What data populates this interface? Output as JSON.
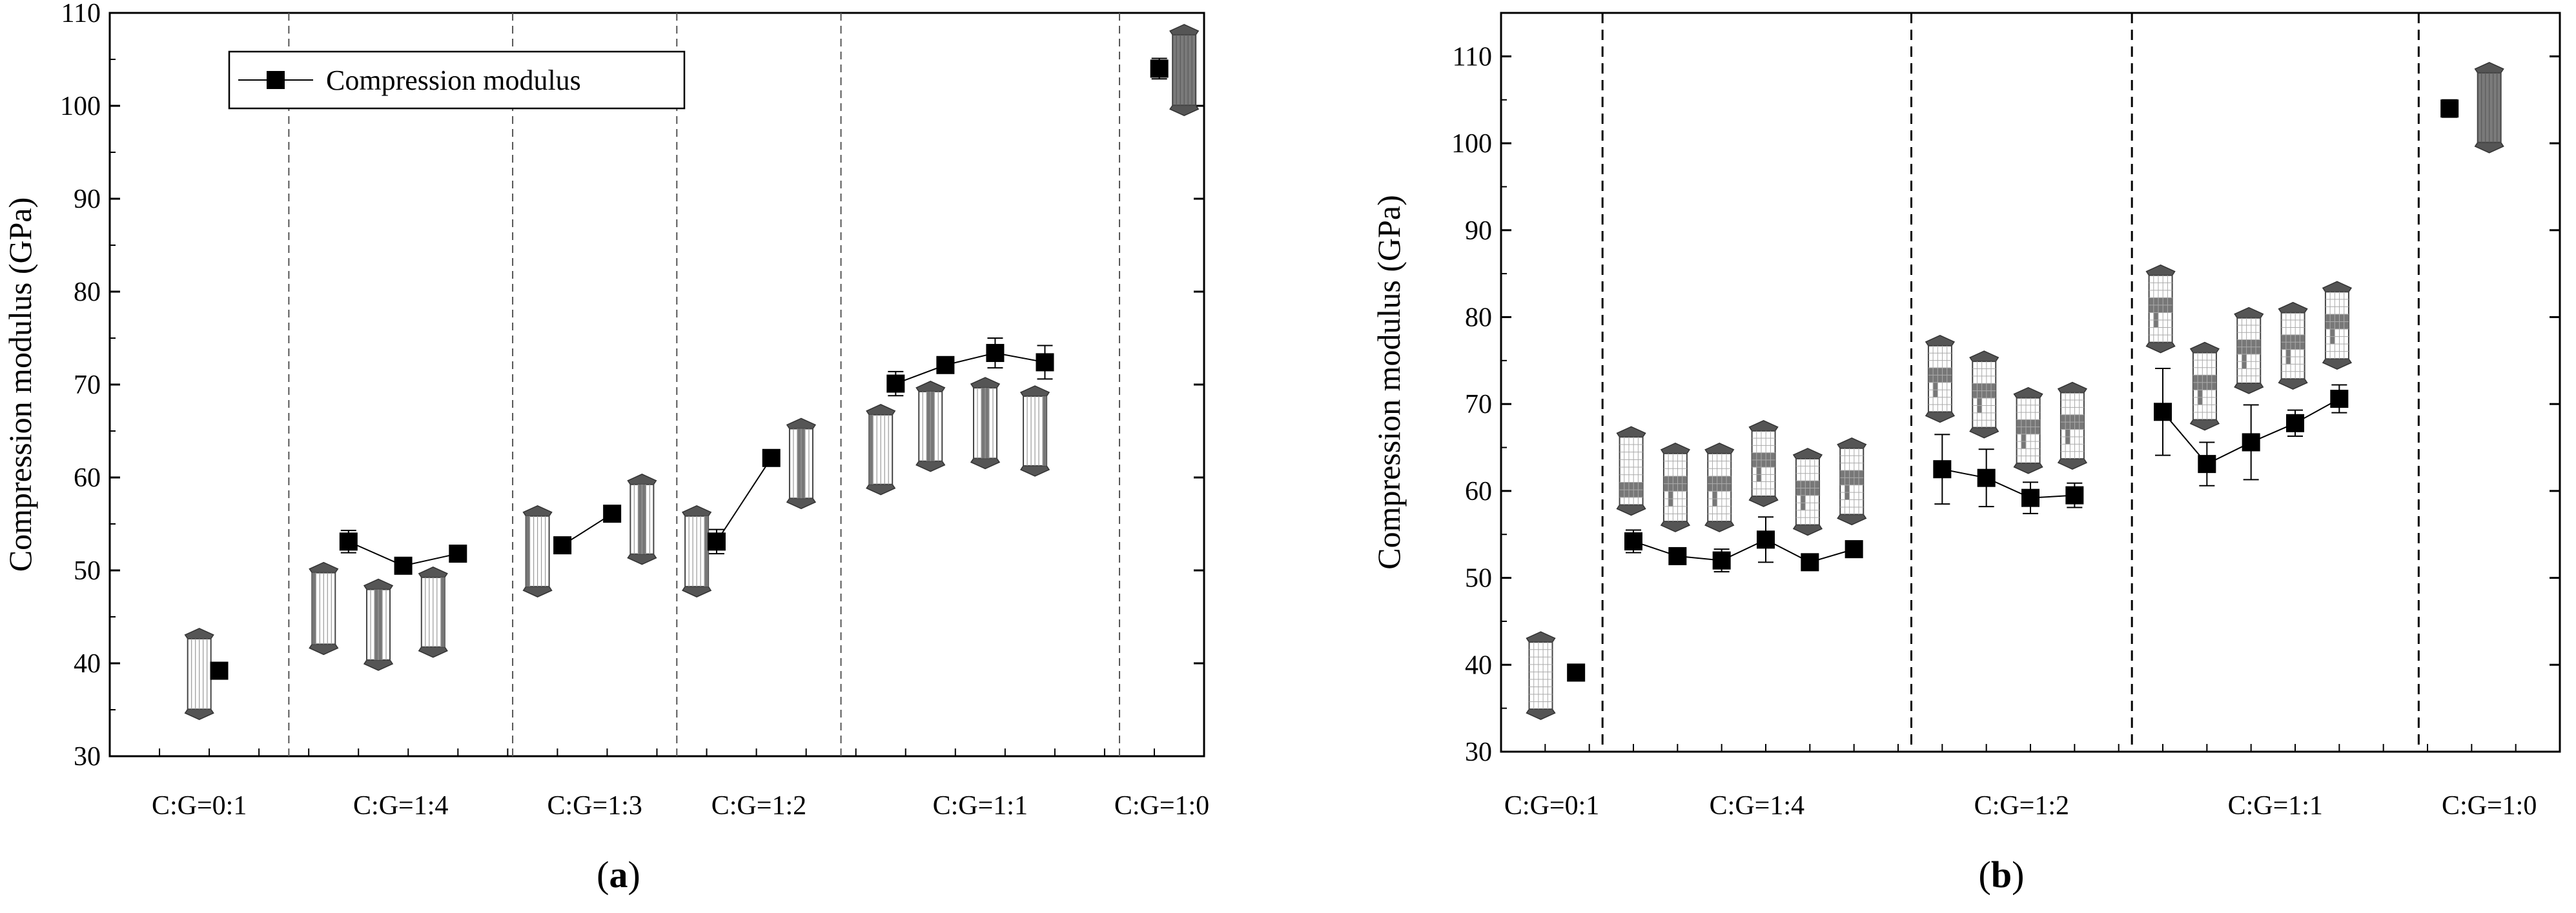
{
  "chart_data": [
    {
      "type": "line",
      "panel_label": "(a)",
      "panel_letter": "a",
      "title": "",
      "xlabel": "",
      "ylabel": "Compression modulus (GPa)",
      "ylim": [
        30,
        110
      ],
      "yticks": [
        30,
        40,
        50,
        60,
        70,
        80,
        90,
        100,
        110
      ],
      "x_range": [
        0,
        22
      ],
      "grid": false,
      "legend": {
        "entries": [
          "Compression modulus"
        ],
        "placement": "top-left"
      },
      "groups": [
        {
          "label": "C:G=0:1",
          "x_start": 0,
          "x_end": 3.6
        },
        {
          "label": "C:G=1:4",
          "x_start": 3.6,
          "x_end": 8.1
        },
        {
          "label": "C:G=1:3",
          "x_start": 8.1,
          "x_end": 11.4
        },
        {
          "label": "C:G=1:2",
          "x_start": 11.4,
          "x_end": 14.7
        },
        {
          "label": "C:G=1:1",
          "x_start": 14.7,
          "x_end": 20.3
        },
        {
          "label": "C:G=1:0",
          "x_start": 20.3,
          "x_end": 22
        }
      ],
      "series": [
        {
          "name": "Compression modulus",
          "group": "C:G=0:1",
          "x": [
            2.2
          ],
          "values": [
            39.2
          ],
          "errors": [
            0.4
          ]
        },
        {
          "name": "Compression modulus",
          "group": "C:G=1:4",
          "x": [
            4.8,
            5.9,
            7.0
          ],
          "values": [
            53.1,
            50.5,
            51.8
          ],
          "errors": [
            1.2,
            0.5,
            0.5
          ]
        },
        {
          "name": "Compression modulus",
          "group": "C:G=1:3",
          "x": [
            9.1,
            10.1
          ],
          "values": [
            52.7,
            56.1
          ],
          "errors": [
            0.4,
            0.4
          ]
        },
        {
          "name": "Compression modulus",
          "group": "C:G=1:2",
          "x": [
            12.2,
            13.3
          ],
          "values": [
            53.1,
            62.1
          ],
          "errors": [
            1.3,
            0.4
          ]
        },
        {
          "name": "Compression modulus",
          "group": "C:G=1:1",
          "x": [
            15.8,
            16.8,
            17.8,
            18.8
          ],
          "values": [
            70.1,
            72.1,
            73.4,
            72.4
          ],
          "errors": [
            1.3,
            0.7,
            1.6,
            1.8
          ]
        },
        {
          "name": "Compression modulus",
          "group": "C:G=1:0",
          "x": [
            21.1
          ],
          "values": [
            104.0
          ],
          "errors": [
            1.1
          ]
        }
      ],
      "specimen_icons": [
        {
          "x": 1.8,
          "y_low": 34.5,
          "y_high": 43.2,
          "pattern": "stripes"
        },
        {
          "x": 4.3,
          "y_low": 41.5,
          "y_high": 50.3,
          "pattern": "stripes-dark-left"
        },
        {
          "x": 5.4,
          "y_low": 39.8,
          "y_high": 48.5,
          "pattern": "stripes-dark-mid"
        },
        {
          "x": 6.5,
          "y_low": 41.2,
          "y_high": 49.8,
          "pattern": "stripes-dark-right"
        },
        {
          "x": 8.6,
          "y_low": 47.7,
          "y_high": 56.4,
          "pattern": "stripes-dark-left"
        },
        {
          "x": 10.7,
          "y_low": 51.2,
          "y_high": 59.8,
          "pattern": "stripes-dark-mid"
        },
        {
          "x": 11.8,
          "y_low": 47.7,
          "y_high": 56.4,
          "pattern": "stripes-dark-right"
        },
        {
          "x": 13.9,
          "y_low": 57.2,
          "y_high": 65.8,
          "pattern": "stripes-dark-mid"
        },
        {
          "x": 15.5,
          "y_low": 58.7,
          "y_high": 67.3,
          "pattern": "stripes-dark-left"
        },
        {
          "x": 16.5,
          "y_low": 61.2,
          "y_high": 69.8,
          "pattern": "stripes-dark-mid"
        },
        {
          "x": 17.6,
          "y_low": 61.5,
          "y_high": 70.2,
          "pattern": "stripes-dark-mid"
        },
        {
          "x": 18.6,
          "y_low": 60.7,
          "y_high": 69.3,
          "pattern": "stripes-dark-right"
        },
        {
          "x": 21.6,
          "y_low": 99.5,
          "y_high": 108.2,
          "pattern": "dark"
        }
      ]
    },
    {
      "type": "line",
      "panel_label": "(b)",
      "panel_letter": "b",
      "title": "",
      "xlabel": "",
      "ylabel": "Compression modulus (GPa)",
      "ylim": [
        30,
        115
      ],
      "yticks": [
        30,
        40,
        50,
        60,
        70,
        80,
        90,
        100,
        110
      ],
      "x_range": [
        0,
        24
      ],
      "grid": false,
      "legend": null,
      "groups": [
        {
          "label": "C:G=0:1",
          "x_start": 0,
          "x_end": 2.3
        },
        {
          "label": "C:G=1:4",
          "x_start": 2.3,
          "x_end": 9.3
        },
        {
          "label": "C:G=1:2",
          "x_start": 9.3,
          "x_end": 14.3
        },
        {
          "label": "C:G=1:1",
          "x_start": 14.3,
          "x_end": 20.8
        },
        {
          "label": "C:G=1:0",
          "x_start": 20.8,
          "x_end": 24
        }
      ],
      "series": [
        {
          "name": "Compression modulus",
          "group": "C:G=0:1",
          "x": [
            1.7
          ],
          "values": [
            39.1
          ],
          "errors": [
            0.4
          ]
        },
        {
          "name": "Compression modulus",
          "group": "C:G=1:4",
          "x": [
            3.0,
            4.0,
            5.0,
            6.0,
            7.0,
            8.0
          ],
          "values": [
            54.2,
            52.5,
            52.0,
            54.4,
            51.8,
            53.3
          ],
          "errors": [
            1.3,
            0.4,
            1.3,
            2.6,
            0.4,
            0.4
          ]
        },
        {
          "name": "Compression modulus",
          "group": "C:G=1:2",
          "x": [
            10.0,
            11.0,
            12.0,
            13.0
          ],
          "values": [
            62.5,
            61.5,
            59.2,
            59.5
          ],
          "errors": [
            4.0,
            3.3,
            1.8,
            1.4
          ]
        },
        {
          "name": "Compression modulus",
          "group": "C:G=1:1",
          "x": [
            15.0,
            16.0,
            17.0,
            18.0,
            19.0
          ],
          "values": [
            69.1,
            63.1,
            65.6,
            67.8,
            70.6
          ],
          "errors": [
            5.0,
            2.5,
            4.3,
            1.5,
            1.6
          ]
        },
        {
          "name": "Compression modulus",
          "group": "C:G=1:0",
          "x": [
            21.5
          ],
          "values": [
            104.0
          ],
          "errors": [
            1.0
          ]
        }
      ],
      "specimen_icons": [
        {
          "x": 0.9,
          "y_low": 34.3,
          "y_high": 43.2,
          "pattern": "grid"
        },
        {
          "x": 2.95,
          "y_low": 57.8,
          "y_high": 66.8,
          "pattern": "grid-dark-bottom"
        },
        {
          "x": 3.95,
          "y_low": 55.9,
          "y_high": 64.9,
          "pattern": "grid-dark-band"
        },
        {
          "x": 4.95,
          "y_low": 55.9,
          "y_high": 64.9,
          "pattern": "grid-dark-band"
        },
        {
          "x": 5.95,
          "y_low": 58.8,
          "y_high": 67.5,
          "pattern": "grid-dark-band"
        },
        {
          "x": 6.95,
          "y_low": 55.5,
          "y_high": 64.3,
          "pattern": "grid-dark-band"
        },
        {
          "x": 7.95,
          "y_low": 56.7,
          "y_high": 65.5,
          "pattern": "grid-dark-band"
        },
        {
          "x": 9.95,
          "y_low": 68.5,
          "y_high": 77.3,
          "pattern": "grid-dark-band"
        },
        {
          "x": 10.95,
          "y_low": 66.7,
          "y_high": 75.5,
          "pattern": "grid-dark-band"
        },
        {
          "x": 11.95,
          "y_low": 62.6,
          "y_high": 71.3,
          "pattern": "grid-dark-band"
        },
        {
          "x": 12.95,
          "y_low": 63.1,
          "y_high": 71.9,
          "pattern": "grid-dark-band"
        },
        {
          "x": 14.95,
          "y_low": 76.5,
          "y_high": 85.4,
          "pattern": "grid-dark-band"
        },
        {
          "x": 15.95,
          "y_low": 67.6,
          "y_high": 76.5,
          "pattern": "grid-dark-band"
        },
        {
          "x": 16.95,
          "y_low": 71.8,
          "y_high": 80.5,
          "pattern": "grid-dark-band"
        },
        {
          "x": 17.95,
          "y_low": 72.3,
          "y_high": 81.1,
          "pattern": "grid-dark-band"
        },
        {
          "x": 18.95,
          "y_low": 74.6,
          "y_high": 83.5,
          "pattern": "grid-dark-band"
        },
        {
          "x": 22.4,
          "y_low": 99.5,
          "y_high": 108.7,
          "pattern": "dark"
        }
      ]
    }
  ]
}
